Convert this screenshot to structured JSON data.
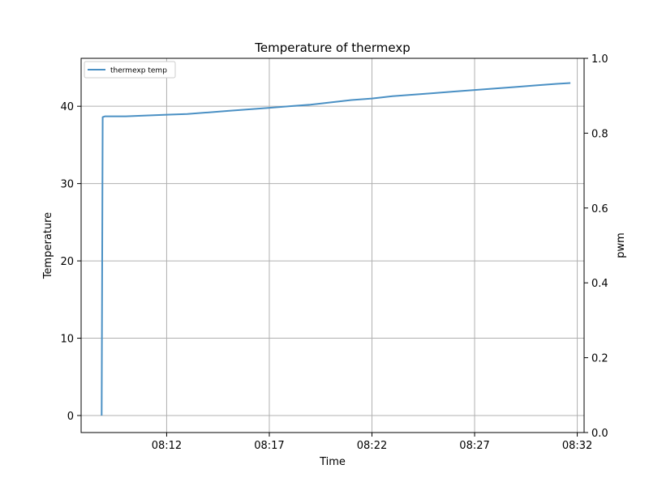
{
  "chart_data": {
    "type": "line",
    "title": "Temperature of thermexp",
    "xlabel": "Time",
    "ylabel": "Temperature",
    "y2label": "pwm",
    "xlim": [
      "08:07:50",
      "08:32:20"
    ],
    "ylim": [
      -2.2,
      46.2
    ],
    "y2lim": [
      0.0,
      1.0
    ],
    "xticks": [
      "08:12",
      "08:17",
      "08:22",
      "08:27",
      "08:32"
    ],
    "yticks": [
      0,
      10,
      20,
      30,
      40
    ],
    "y2ticks": [
      "0.0",
      "0.2",
      "0.4",
      "0.6",
      "0.8",
      "1.0"
    ],
    "grid": true,
    "legend_position": "upper-left",
    "colors": {
      "series": "#4a90c4",
      "grid": "#b0b0b0",
      "axis": "#000000"
    },
    "series": [
      {
        "name": "thermexp temp",
        "x": [
          "08:08:50",
          "08:08:53",
          "08:09:00",
          "08:10:00",
          "08:11:00",
          "08:12:00",
          "08:13:00",
          "08:14:00",
          "08:15:00",
          "08:16:00",
          "08:17:00",
          "08:18:00",
          "08:19:00",
          "08:20:00",
          "08:21:00",
          "08:22:00",
          "08:23:00",
          "08:24:00",
          "08:25:00",
          "08:26:00",
          "08:27:00",
          "08:28:00",
          "08:29:00",
          "08:30:00",
          "08:31:00",
          "08:31:40"
        ],
        "values": [
          0.0,
          38.6,
          38.7,
          38.7,
          38.8,
          38.9,
          39.0,
          39.2,
          39.4,
          39.6,
          39.8,
          40.0,
          40.2,
          40.5,
          40.8,
          41.0,
          41.3,
          41.5,
          41.7,
          41.9,
          42.1,
          42.3,
          42.5,
          42.7,
          42.9,
          43.0
        ]
      }
    ]
  }
}
